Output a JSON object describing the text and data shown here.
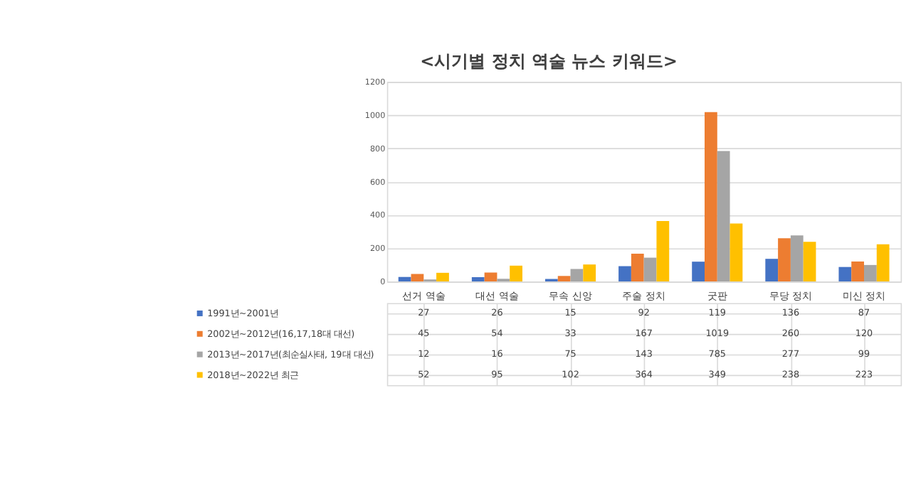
{
  "chart_data": {
    "type": "bar",
    "title": "<시기별 정치 역술 뉴스 키워드>",
    "categories": [
      "선거 역술",
      "대선 역술",
      "무속 신앙",
      "주술 정치",
      "굿판",
      "무당 정치",
      "미신 정치"
    ],
    "series": [
      {
        "name": "1991년~2001년",
        "color": "#4472c4",
        "values": [
          27,
          26,
          15,
          92,
          119,
          136,
          87
        ]
      },
      {
        "name": "2002년~2012년(16,17,18대 대선)",
        "color": "#ed7d31",
        "values": [
          45,
          54,
          33,
          167,
          1019,
          260,
          120
        ]
      },
      {
        "name": "2013년~2017년(최순실사태, 19대 대선)",
        "color": "#a5a5a5",
        "values": [
          12,
          16,
          75,
          143,
          785,
          277,
          99
        ]
      },
      {
        "name": "2018년~2022년 최근",
        "color": "#ffc000",
        "values": [
          52,
          95,
          102,
          364,
          349,
          238,
          223
        ]
      }
    ],
    "ylim": [
      0,
      1200
    ],
    "yticks": [
      0,
      200,
      400,
      600,
      800,
      1000,
      1200
    ],
    "grid": "y",
    "data_labels": true,
    "legend": "bottom"
  }
}
